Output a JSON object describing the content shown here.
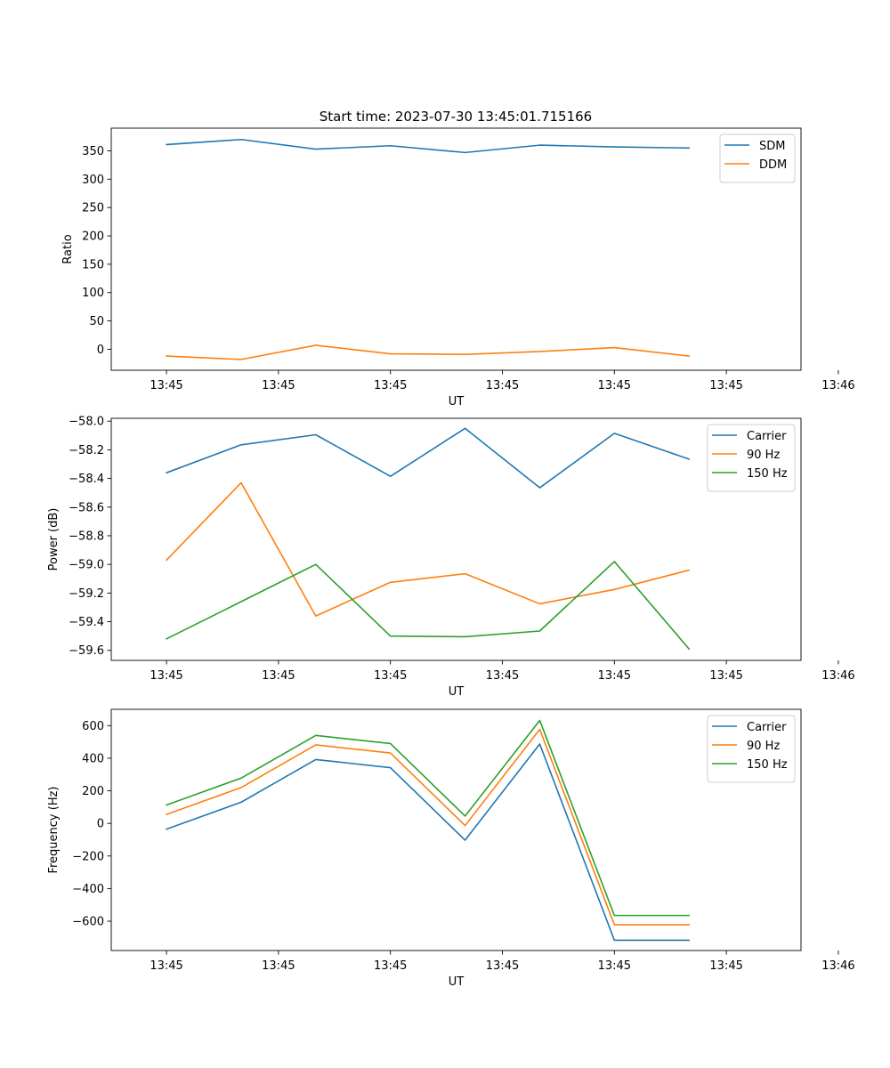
{
  "figure_title": "Start time: 2023-07-30 13:45:01.715166",
  "chart_data": [
    {
      "type": "line",
      "xlabel": "UT",
      "ylabel": "Ratio",
      "xlim": [
        -0.74,
        8.5
      ],
      "ylim": [
        -37,
        390
      ],
      "x_tick_positions": [
        0,
        1.5,
        3,
        4.5,
        6,
        7.5,
        9
      ],
      "x_tick_labels": [
        "13:45",
        "13:45",
        "13:45",
        "13:45",
        "13:45",
        "13:45",
        "13:46"
      ],
      "y_ticks": [
        0,
        50,
        100,
        150,
        200,
        250,
        300,
        350
      ],
      "y_tick_labels": [
        "0",
        "50",
        "100",
        "150",
        "200",
        "250",
        "300",
        "350"
      ],
      "legend_position": "top-right",
      "x": [
        0,
        1,
        2,
        3,
        4,
        5,
        6,
        7
      ],
      "series": [
        {
          "name": "SDM",
          "color": "#1f77b4",
          "values": [
            361,
            370,
            353,
            359,
            347,
            360,
            357,
            355
          ]
        },
        {
          "name": "DDM",
          "color": "#ff7f0e",
          "values": [
            -12,
            -18,
            7,
            -8,
            -9,
            -4,
            3,
            -12
          ]
        }
      ]
    },
    {
      "type": "line",
      "xlabel": "UT",
      "ylabel": "Power (dB)",
      "xlim": [
        -0.74,
        8.5
      ],
      "ylim": [
        -59.67,
        -57.98
      ],
      "x_tick_positions": [
        0,
        1.5,
        3,
        4.5,
        6,
        7.5,
        9
      ],
      "x_tick_labels": [
        "13:45",
        "13:45",
        "13:45",
        "13:45",
        "13:45",
        "13:45",
        "13:46"
      ],
      "y_ticks": [
        -59.6,
        -59.4,
        -59.2,
        -59.0,
        -58.8,
        -58.6,
        -58.4,
        -58.2,
        -58.0
      ],
      "y_tick_labels": [
        "−59.6",
        "−59.4",
        "−59.2",
        "−59.0",
        "−58.8",
        "−58.6",
        "−58.4",
        "−58.2",
        "−58.0"
      ],
      "legend_position": "top-right",
      "x": [
        0,
        1,
        2,
        3,
        4,
        5,
        6,
        7
      ],
      "series": [
        {
          "name": "Carrier",
          "color": "#1f77b4",
          "values": [
            -58.36,
            -58.165,
            -58.095,
            -58.385,
            -58.05,
            -58.465,
            -58.085,
            -58.265
          ]
        },
        {
          "name": "90 Hz",
          "color": "#ff7f0e",
          "values": [
            -58.97,
            -58.43,
            -59.36,
            -59.125,
            -59.065,
            -59.275,
            -59.175,
            -59.04
          ]
        },
        {
          "name": "150 Hz",
          "color": "#2ca02c",
          "values": [
            -59.52,
            -59.26,
            -59.0,
            -59.5,
            -59.505,
            -59.465,
            -58.98,
            -59.59
          ]
        }
      ]
    },
    {
      "type": "line",
      "xlabel": "UT",
      "ylabel": "Frequency (Hz)",
      "xlim": [
        -0.74,
        8.5
      ],
      "ylim": [
        -780,
        700
      ],
      "x_tick_positions": [
        0,
        1.5,
        3,
        4.5,
        6,
        7.5,
        9
      ],
      "x_tick_labels": [
        "13:45",
        "13:45",
        "13:45",
        "13:45",
        "13:45",
        "13:45",
        "13:46"
      ],
      "y_ticks": [
        -600,
        -400,
        -200,
        0,
        200,
        400,
        600
      ],
      "y_tick_labels": [
        "−600",
        "−400",
        "−200",
        "0",
        "200",
        "400",
        "600"
      ],
      "legend_position": "top-right",
      "x": [
        0,
        1,
        2,
        3,
        4,
        5,
        6,
        7
      ],
      "series": [
        {
          "name": "Carrier",
          "color": "#1f77b4",
          "values": [
            -35,
            130,
            392,
            342,
            -103,
            487,
            -717,
            -717
          ]
        },
        {
          "name": "90 Hz",
          "color": "#ff7f0e",
          "values": [
            55,
            220,
            482,
            432,
            -13,
            577,
            -622,
            -622
          ]
        },
        {
          "name": "150 Hz",
          "color": "#2ca02c",
          "values": [
            113,
            278,
            540,
            490,
            45,
            632,
            -565,
            -565
          ]
        }
      ]
    }
  ]
}
